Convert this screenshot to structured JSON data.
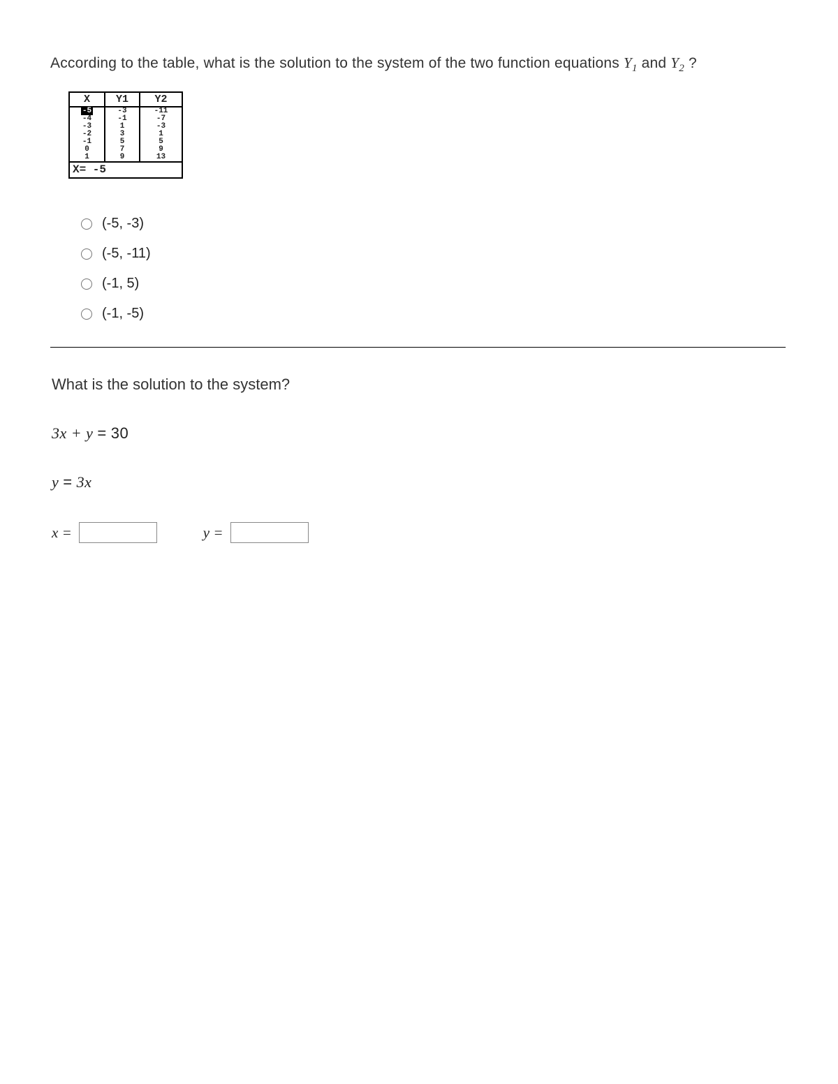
{
  "question1": {
    "prompt_before": "According to the table, what is the solution to the system of the two function equations ",
    "y1": "Y",
    "y1_sub": "1",
    "and": " and ",
    "y2": "Y",
    "y2_sub": "2",
    "prompt_after": " ?"
  },
  "table": {
    "headers": {
      "x": "X",
      "y1": "Y1",
      "y2": "Y2"
    },
    "rows": [
      {
        "x": "-5",
        "y1": "-3",
        "y2": "-11",
        "highlight_x": true
      },
      {
        "x": "-4",
        "y1": "-1",
        "y2": "-7",
        "highlight_x": false
      },
      {
        "x": "-3",
        "y1": "1",
        "y2": "-3",
        "highlight_x": false
      },
      {
        "x": "-2",
        "y1": "3",
        "y2": "1",
        "highlight_x": false
      },
      {
        "x": "-1",
        "y1": "5",
        "y2": "5",
        "highlight_x": false
      },
      {
        "x": "0",
        "y1": "7",
        "y2": "9",
        "highlight_x": false
      },
      {
        "x": "1",
        "y1": "9",
        "y2": "13",
        "highlight_x": false
      }
    ],
    "footer": "X= -5"
  },
  "options": [
    {
      "label": "(-5, -3)"
    },
    {
      "label": "(-5, -11)"
    },
    {
      "label": "(-1, 5)"
    },
    {
      "label": "(-1, -5)"
    }
  ],
  "question2": {
    "prompt": "What is the solution to the system?",
    "eq1_lhs": "3x + y",
    "eq1_rhs": "30",
    "eq2_lhs": "y",
    "eq2_rhs": "3x",
    "x_label": "x =",
    "y_label": "y =",
    "x_value": "",
    "y_value": ""
  },
  "colors": {
    "text": "#333333",
    "border": "#000000",
    "input_border": "#888888",
    "background": "#ffffff"
  }
}
